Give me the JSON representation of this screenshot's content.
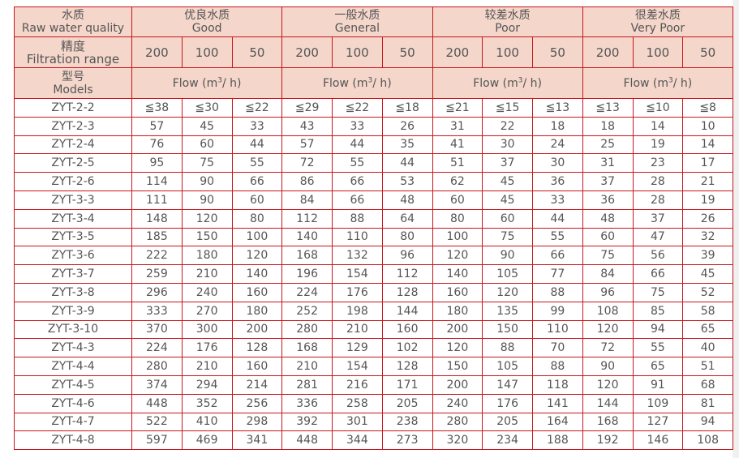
{
  "header": {
    "quality_label_cn": "水质",
    "quality_label_en": "Raw water quality",
    "filtration_label_cn": "精度",
    "filtration_label_en": "Filtration range",
    "models_label_cn": "型号",
    "models_label_en": "Models",
    "flow_label": "Flow (m",
    "flow_sup": "3",
    "flow_suffix": "/ h)",
    "groups": [
      {
        "cn": "优良水质",
        "en": "Good"
      },
      {
        "cn": "一般水质",
        "en": "General"
      },
      {
        "cn": "较差水质",
        "en": "Poor"
      },
      {
        "cn": "很差水质",
        "en": "Very Poor"
      }
    ],
    "ranges": [
      "200",
      "100",
      "50"
    ]
  },
  "rows": [
    [
      "ZYT-2-2",
      "≦38",
      "≦30",
      "≦22",
      "≦29",
      "≦22",
      "≦18",
      "≦21",
      "≦15",
      "≦13",
      "≦13",
      "≦10",
      "≦8"
    ],
    [
      "ZYT-2-3",
      "57",
      "45",
      "33",
      "43",
      "33",
      "26",
      "31",
      "22",
      "18",
      "18",
      "14",
      "10"
    ],
    [
      "ZYT-2-4",
      "76",
      "60",
      "44",
      "57",
      "44",
      "35",
      "41",
      "30",
      "24",
      "25",
      "19",
      "14"
    ],
    [
      "ZYT-2-5",
      "95",
      "75",
      "55",
      "72",
      "55",
      "44",
      "51",
      "37",
      "30",
      "31",
      "23",
      "17"
    ],
    [
      "ZYT-2-6",
      "114",
      "90",
      "66",
      "86",
      "66",
      "53",
      "62",
      "45",
      "36",
      "37",
      "28",
      "21"
    ],
    [
      "ZYT-3-3",
      "111",
      "90",
      "60",
      "84",
      "66",
      "48",
      "60",
      "45",
      "33",
      "36",
      "28",
      "19"
    ],
    [
      "ZYT-3-4",
      "148",
      "120",
      "80",
      "112",
      "88",
      "64",
      "80",
      "60",
      "44",
      "48",
      "37",
      "26"
    ],
    [
      "ZYT-3-5",
      "185",
      "150",
      "100",
      "140",
      "110",
      "80",
      "100",
      "75",
      "55",
      "60",
      "47",
      "32"
    ],
    [
      "ZYT-3-6",
      "222",
      "180",
      "120",
      "168",
      "132",
      "96",
      "120",
      "90",
      "66",
      "75",
      "56",
      "39"
    ],
    [
      "ZYT-3-7",
      "259",
      "210",
      "140",
      "196",
      "154",
      "112",
      "140",
      "105",
      "77",
      "84",
      "66",
      "45"
    ],
    [
      "ZYT-3-8",
      "296",
      "240",
      "160",
      "224",
      "176",
      "128",
      "160",
      "120",
      "88",
      "96",
      "75",
      "52"
    ],
    [
      "ZYT-3-9",
      "333",
      "270",
      "180",
      "252",
      "198",
      "144",
      "180",
      "135",
      "99",
      "108",
      "85",
      "58"
    ],
    [
      "ZYT-3-10",
      "370",
      "300",
      "200",
      "280",
      "210",
      "160",
      "200",
      "150",
      "110",
      "120",
      "94",
      "65"
    ],
    [
      "ZYT-4-3",
      "224",
      "176",
      "128",
      "168",
      "129",
      "102",
      "120",
      "88",
      "70",
      "72",
      "55",
      "40"
    ],
    [
      "ZYT-4-4",
      "280",
      "210",
      "160",
      "210",
      "154",
      "128",
      "150",
      "105",
      "88",
      "90",
      "65",
      "51"
    ],
    [
      "ZYT-4-5",
      "374",
      "294",
      "214",
      "281",
      "216",
      "171",
      "200",
      "147",
      "118",
      "120",
      "91",
      "68"
    ],
    [
      "ZYT-4-6",
      "448",
      "352",
      "256",
      "336",
      "258",
      "205",
      "240",
      "176",
      "141",
      "144",
      "109",
      "81"
    ],
    [
      "ZYT-4-7",
      "522",
      "410",
      "298",
      "392",
      "301",
      "238",
      "280",
      "205",
      "164",
      "168",
      "127",
      "94"
    ],
    [
      "ZYT-4-8",
      "597",
      "469",
      "341",
      "448",
      "344",
      "273",
      "320",
      "234",
      "188",
      "192",
      "146",
      "108"
    ]
  ],
  "colors": {
    "border": "#c8161d",
    "header_bg": "#f4d6ca",
    "text": "#555555"
  }
}
